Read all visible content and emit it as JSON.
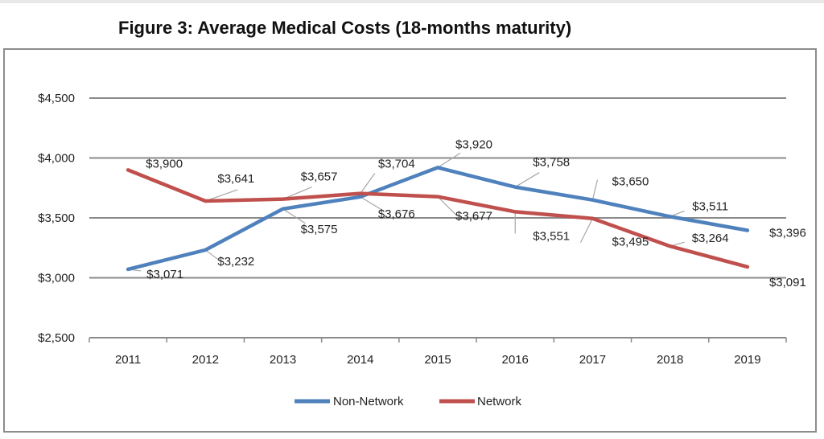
{
  "chart_data": {
    "type": "line",
    "title": "Figure 3: Average Medical Costs (18-months maturity)",
    "xlabel": "",
    "ylabel": "",
    "categories": [
      "2011",
      "2012",
      "2013",
      "2014",
      "2015",
      "2016",
      "2017",
      "2018",
      "2019"
    ],
    "ylim": [
      2500,
      4500
    ],
    "yticks": [
      2500,
      3000,
      3500,
      4000,
      4500
    ],
    "ytick_labels": [
      "$2,500",
      "$3,000",
      "$3,500",
      "$4,000",
      "$4,500"
    ],
    "grid": true,
    "legend_position": "bottom",
    "series": [
      {
        "name": "Non-Network",
        "color": "#4f81bd",
        "values": [
          3071,
          3232,
          3575,
          3676,
          3920,
          3758,
          3650,
          3511,
          3396
        ],
        "labels": [
          "$3,071",
          "$3,232",
          "$3,575",
          "$3,676",
          "$3,920",
          "$3,758",
          "$3,650",
          "$3,511",
          "$3,396"
        ]
      },
      {
        "name": "Network",
        "color": "#c0504d",
        "values": [
          3900,
          3641,
          3657,
          3704,
          3677,
          3551,
          3495,
          3264,
          3091
        ],
        "labels": [
          "$3,900",
          "$3,641",
          "$3,657",
          "$3,704",
          "$3,677",
          "$3,551",
          "$3,495",
          "$3,264",
          "$3,091"
        ]
      }
    ]
  }
}
